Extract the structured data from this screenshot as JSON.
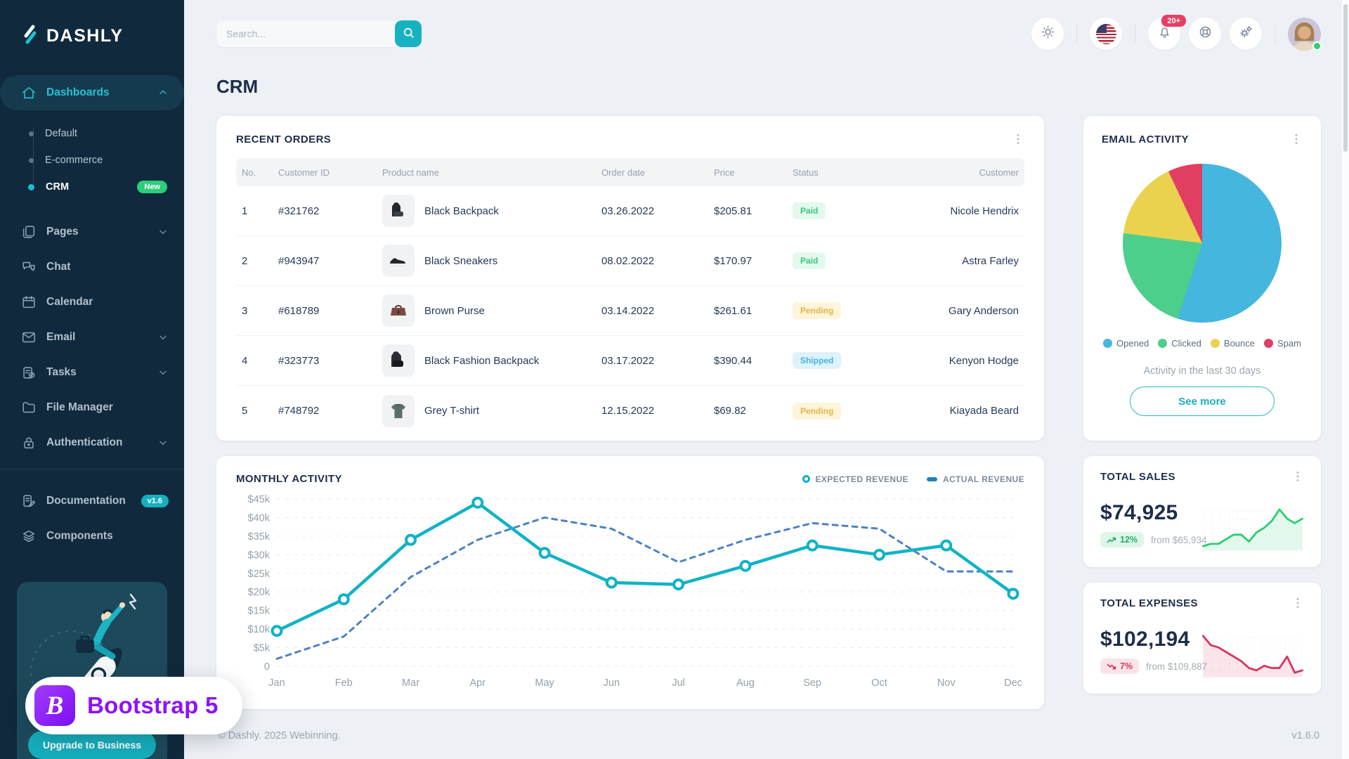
{
  "app": {
    "name": "DASHLY"
  },
  "topbar": {
    "search_placeholder": "Search...",
    "notification_count": "20+"
  },
  "page_title": "CRM",
  "colors": {
    "accent_teal": "#17b2c2",
    "sidebar_bg": "#10293d",
    "success_green": "#2dcd7a",
    "danger_red": "#ea3d62",
    "brand_purple": "#8d12fc"
  },
  "sidebar": {
    "dashboards": {
      "label": "Dashboards",
      "items": [
        {
          "label": "Default",
          "active": false
        },
        {
          "label": "E-commerce",
          "active": false
        },
        {
          "label": "CRM",
          "active": true,
          "badge": "New"
        }
      ]
    },
    "menu": [
      {
        "label": "Pages",
        "icon": "pages-icon",
        "chevron": true
      },
      {
        "label": "Chat",
        "icon": "chat-icon",
        "chevron": false
      },
      {
        "label": "Calendar",
        "icon": "calendar-icon",
        "chevron": false
      },
      {
        "label": "Email",
        "icon": "email-icon",
        "chevron": true
      },
      {
        "label": "Tasks",
        "icon": "tasks-icon",
        "chevron": true
      },
      {
        "label": "File Manager",
        "icon": "folder-icon",
        "chevron": false
      },
      {
        "label": "Authentication",
        "icon": "lock-icon",
        "chevron": true
      }
    ],
    "secondary": [
      {
        "label": "Documentation",
        "icon": "doc-icon",
        "badge": "v1.6"
      },
      {
        "label": "Components",
        "icon": "layers-icon"
      }
    ],
    "upgrade_label": "Upgrade to Business"
  },
  "recent_orders": {
    "title": "RECENT ORDERS",
    "columns": [
      "No.",
      "Customer ID",
      "Product name",
      "Order date",
      "Price",
      "Status",
      "Customer"
    ],
    "rows": [
      {
        "no": "1",
        "customer_id": "#321762",
        "product": "Black Backpack",
        "thumb": "backpack",
        "order_date": "03.26.2022",
        "price": "$205.81",
        "status": "Paid",
        "customer": "Nicole Hendrix"
      },
      {
        "no": "2",
        "customer_id": "#943947",
        "product": "Black Sneakers",
        "thumb": "sneaker",
        "order_date": "08.02.2022",
        "price": "$170.97",
        "status": "Paid",
        "customer": "Astra Farley"
      },
      {
        "no": "3",
        "customer_id": "#618789",
        "product": "Brown Purse",
        "thumb": "purse",
        "order_date": "03.14.2022",
        "price": "$261.61",
        "status": "Pending",
        "customer": "Gary Anderson"
      },
      {
        "no": "4",
        "customer_id": "#323773",
        "product": "Black Fashion Backpack",
        "thumb": "backpack2",
        "order_date": "03.17.2022",
        "price": "$390.44",
        "status": "Shipped",
        "customer": "Kenyon Hodge"
      },
      {
        "no": "5",
        "customer_id": "#748792",
        "product": "Grey T-shirt",
        "thumb": "tshirt",
        "order_date": "12.15.2022",
        "price": "$69.82",
        "status": "Pending",
        "customer": "Kiayada Beard"
      }
    ]
  },
  "email_activity": {
    "title": "EMAIL ACTIVITY",
    "subtitle": "Activity in the last 30 days",
    "see_more_label": "See more"
  },
  "monthly_activity": {
    "title": "MONTHLY ACTIVITY"
  },
  "total_sales": {
    "title": "TOTAL SALES",
    "value": "$74,925",
    "delta": "12%",
    "compare": "from $65,934",
    "trend": "up"
  },
  "total_expenses": {
    "title": "TOTAL EXPENSES",
    "value": "$102,194",
    "delta": "7%",
    "compare": "from $109,887",
    "trend": "down"
  },
  "footer": {
    "copyright": "© Dashly. 2025 Webinning.",
    "version": "v1.6.0"
  },
  "bootstrap_badge": {
    "label": "Bootstrap 5",
    "logo_letter": "B"
  },
  "chart_data": [
    {
      "id": "email-activity-pie",
      "type": "pie",
      "labels": [
        "Opened",
        "Clicked",
        "Bounce",
        "Spam"
      ],
      "values": [
        55,
        22,
        16,
        7
      ],
      "colors": [
        "#45b6dd",
        "#4ccf8b",
        "#ead24f",
        "#e23e62"
      ],
      "title": "EMAIL ACTIVITY",
      "legend_position": "bottom"
    },
    {
      "id": "monthly-activity-line",
      "type": "line",
      "title": "MONTHLY ACTIVITY",
      "categories": [
        "Jan",
        "Feb",
        "Mar",
        "Apr",
        "May",
        "Jun",
        "Jul",
        "Aug",
        "Sep",
        "Oct",
        "Nov",
        "Dec"
      ],
      "y_ticks": [
        "$45k",
        "$40k",
        "$35k",
        "$30k",
        "$25k",
        "$20k",
        "$15k",
        "$10k",
        "$5k",
        "0"
      ],
      "ylim": [
        0,
        45000
      ],
      "grid": true,
      "legend_position": "top-right",
      "series": [
        {
          "name": "EXPECTED REVENUE",
          "color": "#10b3c5",
          "style": "solid-circle-markers",
          "values": [
            9500,
            18000,
            34000,
            44000,
            30500,
            22500,
            22000,
            27000,
            32500,
            30000,
            32500,
            19500
          ]
        },
        {
          "name": "ACTUAL REVENUE",
          "color": "#4c82c3",
          "style": "dashed",
          "values": [
            2000,
            8000,
            24000,
            34000,
            40000,
            37000,
            28000,
            34000,
            38500,
            37000,
            25500,
            25500
          ]
        }
      ]
    },
    {
      "id": "total-sales-spark",
      "type": "area",
      "color": "#2ecd71",
      "values": [
        4,
        5,
        5,
        7,
        9,
        9,
        6,
        10,
        12,
        15,
        20,
        16,
        14,
        16
      ]
    },
    {
      "id": "total-expenses-spark",
      "type": "area",
      "color": "#d8365f",
      "values": [
        21,
        17,
        16,
        14,
        12,
        10,
        7,
        6,
        8,
        7,
        7,
        12,
        5,
        6
      ]
    }
  ]
}
